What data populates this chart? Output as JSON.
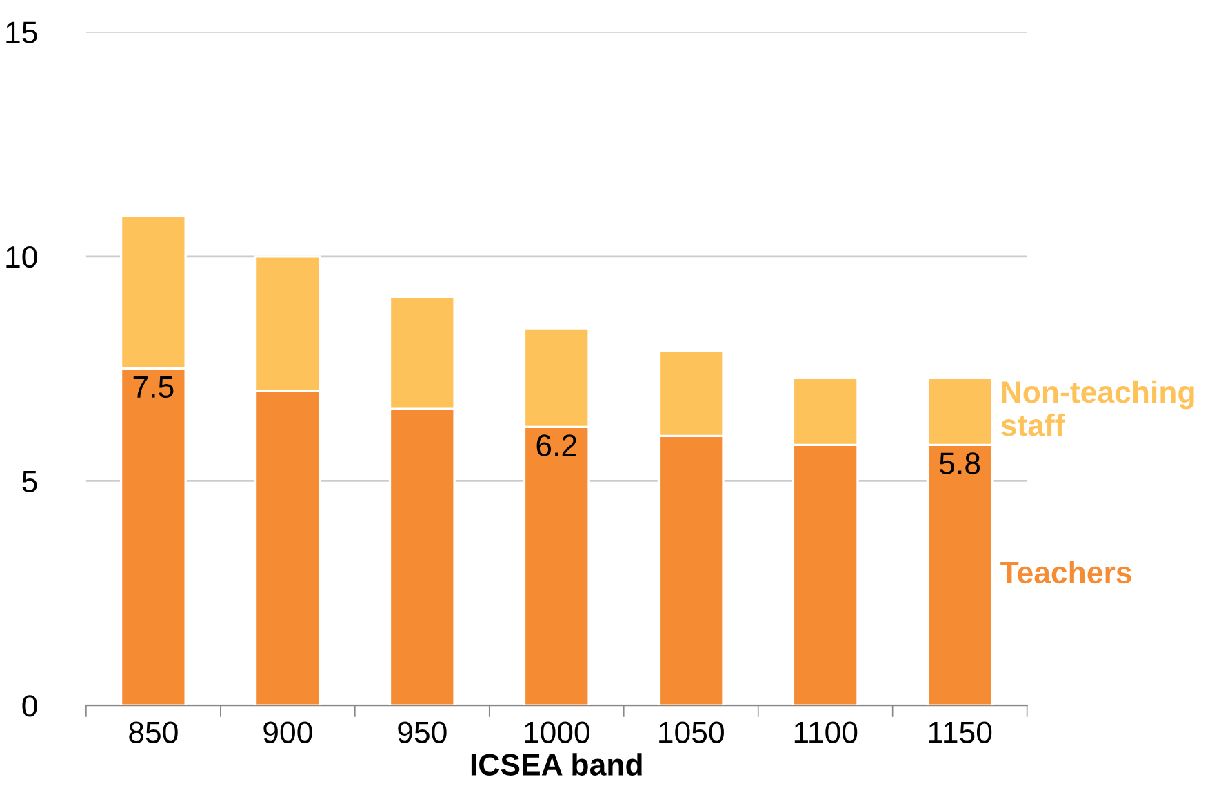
{
  "chart_data": {
    "type": "bar",
    "stacked": true,
    "xlabel": "ICSEA band",
    "categories": [
      "850",
      "900",
      "950",
      "1000",
      "1050",
      "1100",
      "1150"
    ],
    "series": [
      {
        "name": "Teachers",
        "color": "#f58b33",
        "values": [
          7.5,
          7.0,
          6.6,
          6.2,
          6.0,
          5.8,
          5.8
        ],
        "value_labels": [
          "7.5",
          null,
          null,
          "6.2",
          null,
          null,
          "5.8"
        ]
      },
      {
        "name": "Non-teaching staff",
        "color": "#fec25b",
        "values": [
          3.4,
          3.0,
          2.5,
          2.2,
          1.9,
          1.5,
          1.5
        ]
      }
    ],
    "ylim": [
      0,
      15
    ],
    "yticks": [
      0,
      5,
      10,
      15
    ],
    "grid": "y",
    "legend": false
  }
}
